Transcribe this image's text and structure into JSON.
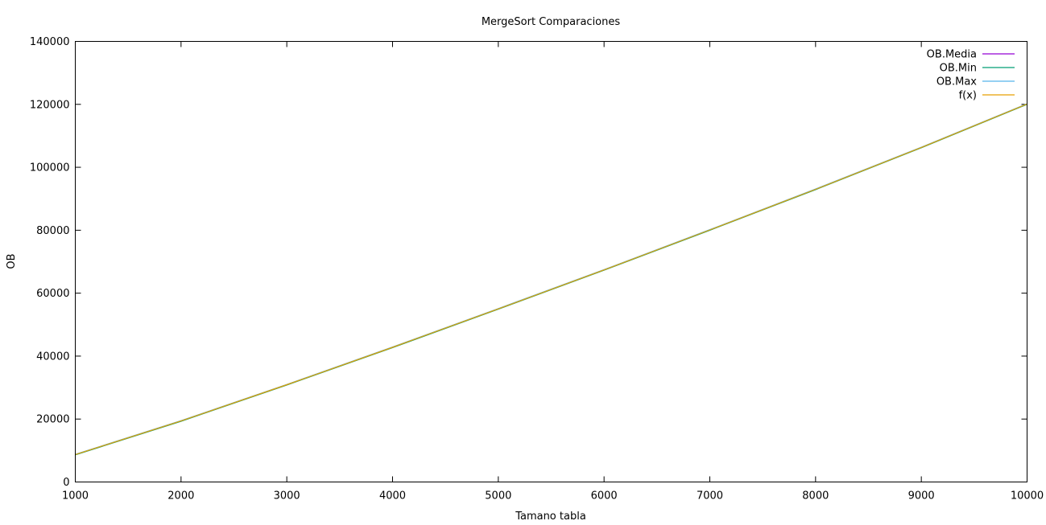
{
  "chart_data": {
    "type": "line",
    "title": "MergeSort Comparaciones",
    "xlabel": "Tamano tabla",
    "ylabel": "OB",
    "xlim": [
      1000,
      10000
    ],
    "ylim": [
      0,
      140000
    ],
    "xticks": [
      1000,
      2000,
      3000,
      4000,
      5000,
      6000,
      7000,
      8000,
      9000,
      10000
    ],
    "yticks": [
      0,
      20000,
      40000,
      60000,
      80000,
      100000,
      120000,
      140000
    ],
    "grid": false,
    "legend_position": "top-right",
    "x": [
      1000,
      2000,
      3000,
      4000,
      5000,
      6000,
      7000,
      8000,
      9000,
      10000
    ],
    "series": [
      {
        "name": "OB.Media",
        "color": "#9400d3",
        "values": [
          8700,
          19400,
          30900,
          42800,
          55000,
          67400,
          80100,
          93000,
          106300,
          120100
        ]
      },
      {
        "name": "OB.Min",
        "color": "#009e73",
        "values": [
          8600,
          19300,
          30800,
          42700,
          54900,
          67300,
          80000,
          92900,
          106200,
          120000
        ]
      },
      {
        "name": "OB.Max",
        "color": "#56b4e9",
        "values": [
          8800,
          19500,
          31000,
          42900,
          55100,
          67500,
          80200,
          93100,
          106400,
          120200
        ]
      },
      {
        "name": "f(x)",
        "color": "#e69f00",
        "values": [
          8700,
          19400,
          30900,
          42800,
          55000,
          67400,
          80100,
          93000,
          106300,
          120100
        ]
      }
    ]
  }
}
